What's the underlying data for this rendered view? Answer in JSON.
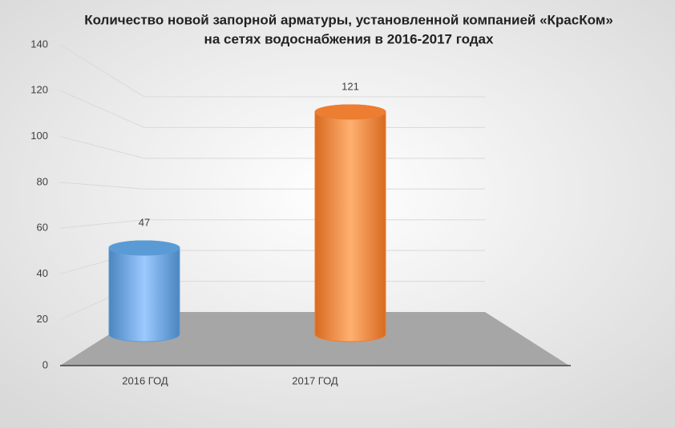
{
  "chart_data": {
    "type": "bar3d",
    "title_lines": [
      "Количество новой запорной арматуры, установленной компанией «КрасКом»",
      "на сетях водоснабжения  в 2016-2017 годах"
    ],
    "categories": [
      "2016 ГОД",
      "2017 ГОД"
    ],
    "series": [
      {
        "values": [
          47,
          121
        ],
        "colors": [
          "#5b9bd5",
          "#ed7d31"
        ]
      }
    ],
    "ylim": [
      0,
      140
    ],
    "yticks": [
      0,
      20,
      40,
      60,
      80,
      100,
      120,
      140
    ],
    "grid": true
  }
}
